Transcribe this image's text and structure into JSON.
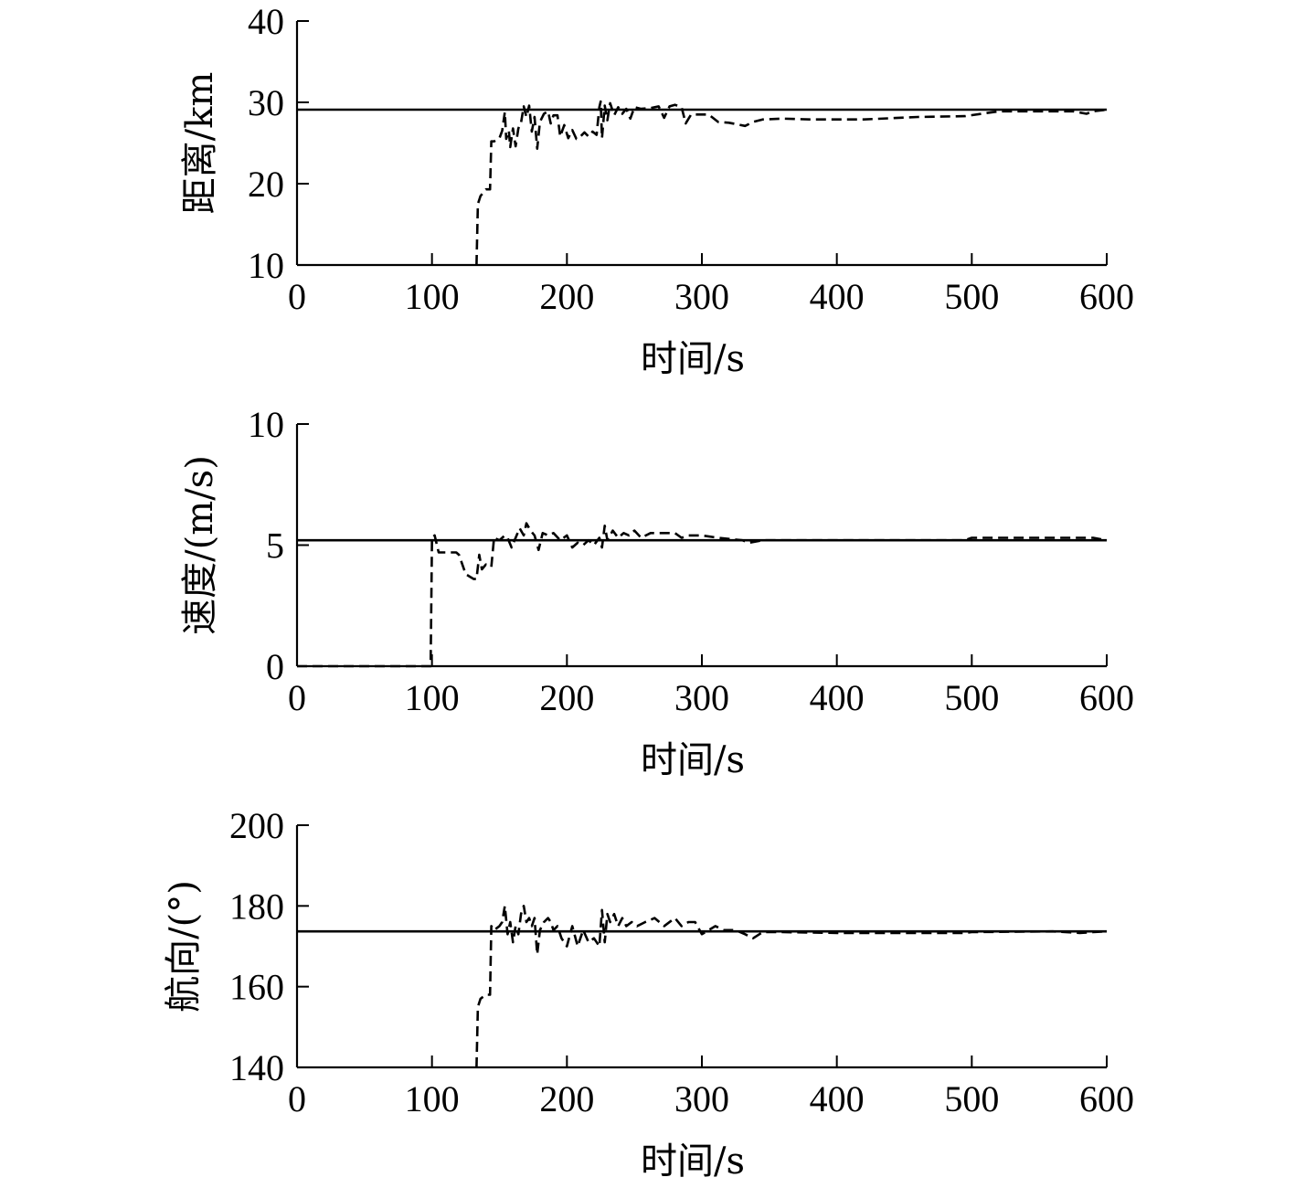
{
  "chart_data": [
    {
      "type": "line",
      "xlabel": "时间/s",
      "ylabel": "距离/km",
      "xlim": [
        0,
        600
      ],
      "ylim": [
        10,
        40
      ],
      "xticks": [
        "0",
        "100",
        "200",
        "300",
        "400",
        "500",
        "600"
      ],
      "yticks": [
        "10",
        "20",
        "30",
        "40"
      ],
      "grid": false,
      "series": [
        {
          "style": "solid",
          "x": [
            0,
            600
          ],
          "y": [
            29.1,
            29.1
          ]
        },
        {
          "style": "dashed",
          "x": [
            133,
            134,
            136,
            140,
            143,
            144,
            146,
            150,
            152,
            154,
            155,
            157,
            158,
            160,
            162,
            164,
            166,
            168,
            170,
            172,
            174,
            176,
            178,
            180,
            183,
            186,
            188,
            190,
            193,
            195,
            198,
            201,
            204,
            207,
            210,
            213,
            216,
            219,
            222,
            224,
            225,
            226,
            228,
            230,
            232,
            235,
            238,
            241,
            244,
            247,
            250,
            255,
            262,
            268,
            272,
            276,
            280,
            285,
            288,
            292,
            298,
            305,
            312,
            320,
            326,
            332,
            338,
            345,
            360,
            380,
            420,
            460,
            495,
            520,
            560,
            575,
            585,
            590,
            600
          ],
          "y": [
            10,
            17.5,
            18.5,
            19.3,
            19.3,
            25.2,
            25.2,
            25.6,
            26.5,
            28.8,
            25.5,
            26.5,
            24.5,
            26.8,
            24.6,
            26.8,
            27.5,
            29.5,
            28.2,
            29.6,
            26.4,
            28.2,
            24.3,
            27.6,
            28.6,
            28.9,
            27.4,
            28.4,
            28.4,
            25.8,
            27.2,
            25.6,
            26.6,
            25.5,
            25.8,
            26.3,
            25.8,
            26.4,
            26.0,
            29.4,
            30.1,
            25.6,
            29.6,
            27.8,
            29.9,
            28.4,
            29.4,
            28.6,
            29.2,
            28.0,
            29.4,
            29.2,
            29.3,
            29.5,
            28.1,
            29.5,
            29.7,
            29.4,
            27.4,
            28.5,
            28.5,
            28.5,
            27.6,
            27.5,
            27.3,
            27.1,
            27.6,
            27.9,
            28.0,
            27.9,
            27.9,
            28.2,
            28.3,
            28.9,
            28.9,
            28.9,
            28.6,
            28.9,
            29.1
          ]
        }
      ]
    },
    {
      "type": "line",
      "xlabel": "时间/s",
      "ylabel": "速度/(m/s)",
      "xlim": [
        0,
        600
      ],
      "ylim": [
        0,
        10
      ],
      "xticks": [
        "0",
        "100",
        "200",
        "300",
        "400",
        "500",
        "600"
      ],
      "yticks": [
        "0",
        "5",
        "10"
      ],
      "grid": false,
      "series": [
        {
          "style": "solid",
          "x": [
            0,
            600
          ],
          "y": [
            5.2,
            5.2
          ]
        },
        {
          "style": "dashed",
          "x": [
            0,
            99,
            100,
            102,
            105,
            112,
            118,
            120,
            125,
            128,
            131,
            133,
            135,
            137,
            140,
            144,
            146,
            150,
            154,
            156,
            159,
            162,
            165,
            168,
            170,
            173,
            176,
            179,
            182,
            186,
            190,
            195,
            200,
            204,
            208,
            212,
            216,
            220,
            224,
            226,
            228,
            230,
            234,
            238,
            242,
            246,
            250,
            255,
            262,
            270,
            280,
            285,
            290,
            300,
            312,
            330,
            335,
            345,
            400,
            495,
            500,
            560,
            590,
            600
          ],
          "y": [
            0,
            0,
            5.3,
            5.4,
            4.7,
            4.7,
            4.7,
            4.6,
            3.8,
            3.7,
            3.6,
            3.6,
            4.6,
            4.0,
            4.2,
            4.1,
            5.3,
            5.2,
            5.4,
            5.3,
            4.9,
            5.3,
            5.7,
            5.4,
            5.9,
            5.6,
            5.4,
            4.8,
            5.5,
            5.4,
            5.5,
            5.2,
            5.4,
            4.9,
            5.1,
            5.0,
            5.2,
            5.0,
            5.3,
            4.9,
            5.8,
            5.2,
            5.6,
            5.3,
            5.5,
            5.4,
            5.6,
            5.3,
            5.5,
            5.5,
            5.5,
            5.3,
            5.4,
            5.4,
            5.3,
            5.2,
            5.1,
            5.2,
            5.2,
            5.2,
            5.3,
            5.3,
            5.3,
            5.2
          ]
        }
      ]
    },
    {
      "type": "line",
      "xlabel": "时间/s",
      "ylabel": "航向/(°)",
      "xlim": [
        0,
        600
      ],
      "ylim": [
        140,
        200
      ],
      "xticks": [
        "0",
        "100",
        "200",
        "300",
        "400",
        "500",
        "600"
      ],
      "yticks": [
        "140",
        "160",
        "180",
        "200"
      ],
      "grid": false,
      "series": [
        {
          "style": "solid",
          "x": [
            0,
            600
          ],
          "y": [
            173.7,
            173.7
          ]
        },
        {
          "style": "dashed",
          "x": [
            133,
            134,
            136,
            140,
            143,
            144,
            146,
            150,
            152,
            154,
            156,
            158,
            160,
            162,
            164,
            166,
            168,
            170,
            172,
            174,
            176,
            178,
            180,
            183,
            186,
            188,
            190,
            193,
            196,
            200,
            204,
            208,
            212,
            216,
            220,
            224,
            226,
            228,
            230,
            232,
            235,
            238,
            241,
            244,
            248,
            252,
            258,
            265,
            272,
            280,
            285,
            290,
            295,
            300,
            310,
            316,
            325,
            332,
            338,
            345,
            360,
            400,
            450,
            495,
            500,
            560,
            580,
            590,
            600
          ],
          "y": [
            140,
            155,
            157,
            158,
            158,
            175,
            174,
            175,
            176,
            180,
            173,
            176,
            171,
            175,
            173,
            178,
            180,
            176,
            177,
            175,
            177,
            168,
            174,
            176,
            177,
            176,
            174,
            175,
            172,
            170,
            175,
            170,
            174,
            171,
            172,
            170,
            179,
            171,
            178,
            176,
            178,
            175,
            177,
            175,
            176,
            175,
            176,
            177,
            175,
            177,
            175,
            176,
            176,
            173,
            175,
            174,
            174,
            173,
            172,
            173.5,
            173.5,
            173.3,
            173.3,
            173.3,
            173.5,
            173.7,
            173.3,
            173.5,
            173.7
          ]
        }
      ]
    }
  ]
}
